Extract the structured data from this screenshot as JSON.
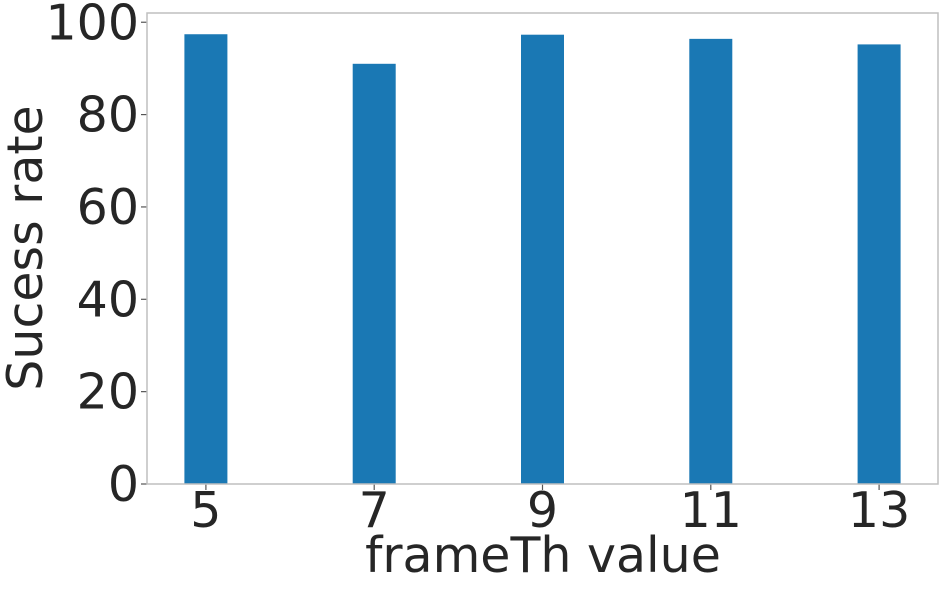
{
  "chart_data": {
    "type": "bar",
    "title": "",
    "xlabel": "frameTh value",
    "ylabel": "Sucess rate",
    "categories": [
      "5",
      "7",
      "9",
      "11",
      "13"
    ],
    "x": [
      5,
      7,
      9,
      11,
      13
    ],
    "values": [
      97.4,
      91.0,
      97.3,
      96.4,
      95.2
    ],
    "xlim": [
      4.3,
      13.7
    ],
    "ylim": [
      0,
      102
    ],
    "yticks": [
      0,
      20,
      40,
      60,
      80,
      100
    ],
    "bar_width": 0.5,
    "grid": false,
    "bar_color": "#1a78b4"
  }
}
